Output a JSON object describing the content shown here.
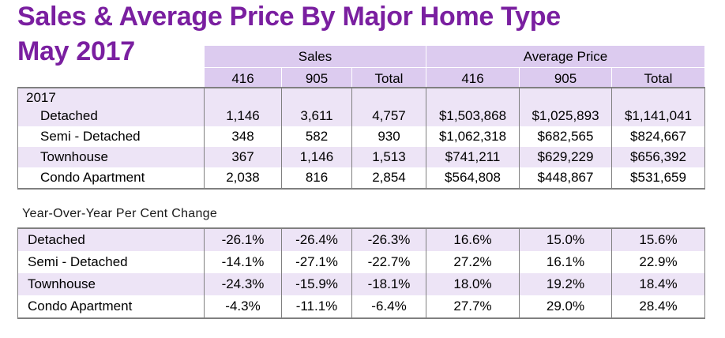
{
  "title_line1": "Sales & Average Price By Major Home Type",
  "title_line2": "May 2017",
  "groups": {
    "sales": "Sales",
    "avg": "Average Price"
  },
  "cols": [
    "416",
    "905",
    "Total",
    "416",
    "905",
    "Total"
  ],
  "year": "2017",
  "rows": [
    {
      "label": "Detached",
      "vals": [
        "1,146",
        "3,611",
        "4,757",
        "$1,503,868",
        "$1,025,893",
        "$1,141,041"
      ]
    },
    {
      "label": "Semi - Detached",
      "vals": [
        "348",
        "582",
        "930",
        "$1,062,318",
        "$682,565",
        "$824,667"
      ]
    },
    {
      "label": "Townhouse",
      "vals": [
        "367",
        "1,146",
        "1,513",
        "$741,211",
        "$629,229",
        "$656,392"
      ]
    },
    {
      "label": "Condo Apartment",
      "vals": [
        "2,038",
        "816",
        "2,854",
        "$564,808",
        "$448,867",
        "$531,659"
      ]
    }
  ],
  "yoy_title": "Year-Over-Year Per Cent Change",
  "yoy": [
    {
      "label": "Detached",
      "vals": [
        "-26.1%",
        "-26.4%",
        "-26.3%",
        "16.6%",
        "15.0%",
        "15.6%"
      ]
    },
    {
      "label": "Semi - Detached",
      "vals": [
        "-14.1%",
        "-27.1%",
        "-22.7%",
        "27.2%",
        "16.1%",
        "22.9%"
      ]
    },
    {
      "label": "Townhouse",
      "vals": [
        "-24.3%",
        "-15.9%",
        "-18.1%",
        "18.0%",
        "19.2%",
        "18.4%"
      ]
    },
    {
      "label": "Condo Apartment",
      "vals": [
        "-4.3%",
        "-11.1%",
        "-6.4%",
        "27.7%",
        "29.0%",
        "28.4%"
      ]
    }
  ]
}
